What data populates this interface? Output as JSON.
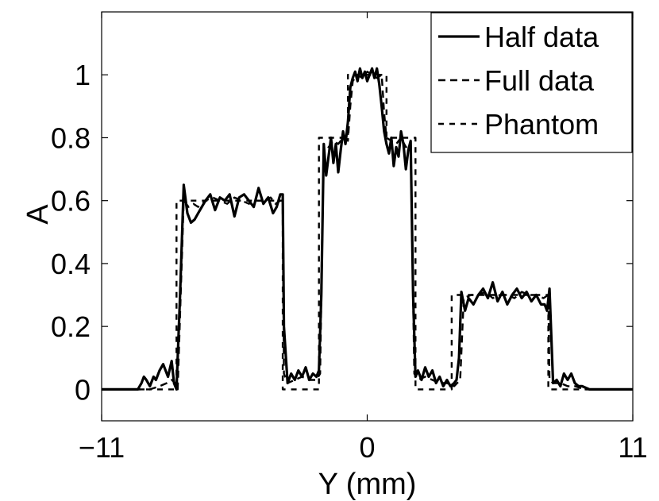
{
  "chart_data": {
    "type": "line",
    "xlabel": "Y (mm)",
    "ylabel": "A",
    "xlim": [
      -11,
      11
    ],
    "ylim": [
      -0.1,
      1.2
    ],
    "x_ticks": [
      {
        "value": -11,
        "label": "−11"
      },
      {
        "value": 0,
        "label": "0"
      },
      {
        "value": 11,
        "label": "11"
      }
    ],
    "y_ticks": [
      {
        "value": 0,
        "label": "0"
      },
      {
        "value": 0.2,
        "label": "0.2"
      },
      {
        "value": 0.4,
        "label": "0.4"
      },
      {
        "value": 0.6,
        "label": "0.6"
      },
      {
        "value": 0.8,
        "label": "0.8"
      },
      {
        "value": 1,
        "label": "1"
      }
    ],
    "grid": false,
    "legend_position": "top-right",
    "series": [
      {
        "name": "Half data",
        "style": "solid",
        "x": [
          -11,
          -9.5,
          -9.35,
          -9.25,
          -9.15,
          -9.0,
          -8.85,
          -8.75,
          -8.6,
          -8.45,
          -8.25,
          -8.1,
          -8.0,
          -7.9,
          -7.75,
          -7.6,
          -7.45,
          -7.3,
          -7.15,
          -7.0,
          -6.85,
          -6.7,
          -6.5,
          -6.3,
          -6.1,
          -5.9,
          -5.7,
          -5.5,
          -5.3,
          -5.1,
          -4.9,
          -4.7,
          -4.5,
          -4.3,
          -4.1,
          -3.9,
          -3.75,
          -3.6,
          -3.5,
          -3.45,
          -3.3,
          -3.15,
          -3.0,
          -2.85,
          -2.7,
          -2.55,
          -2.4,
          -2.25,
          -2.1,
          -2.0,
          -1.9,
          -1.8,
          -1.7,
          -1.6,
          -1.5,
          -1.4,
          -1.3,
          -1.2,
          -1.1,
          -1.0,
          -0.9,
          -0.8,
          -0.7,
          -0.6,
          -0.5,
          -0.4,
          -0.3,
          -0.2,
          -0.1,
          0.0,
          0.1,
          0.2,
          0.3,
          0.4,
          0.5,
          0.6,
          0.7,
          0.8,
          0.9,
          1.0,
          1.1,
          1.2,
          1.3,
          1.4,
          1.5,
          1.6,
          1.7,
          1.8,
          1.9,
          2.0,
          2.1,
          2.25,
          2.4,
          2.55,
          2.7,
          2.85,
          3.0,
          3.15,
          3.3,
          3.45,
          3.6,
          3.7,
          3.8,
          3.9,
          4.05,
          4.2,
          4.4,
          4.6,
          4.8,
          5.0,
          5.2,
          5.4,
          5.6,
          5.8,
          6.0,
          6.2,
          6.4,
          6.6,
          6.8,
          7.0,
          7.2,
          7.35,
          7.45,
          7.55,
          7.7,
          7.85,
          8.0,
          8.15,
          8.3,
          8.45,
          8.6,
          8.75,
          8.9,
          9.2,
          11
        ],
        "y": [
          0,
          0,
          0.02,
          0.04,
          0.03,
          0.01,
          0.04,
          0.03,
          0.06,
          0.08,
          0.04,
          0.09,
          0.02,
          0,
          0.3,
          0.65,
          0.56,
          0.53,
          0.54,
          0.56,
          0.58,
          0.6,
          0.62,
          0.57,
          0.61,
          0.6,
          0.62,
          0.55,
          0.61,
          0.62,
          0.6,
          0.58,
          0.64,
          0.59,
          0.61,
          0.56,
          0.58,
          0.62,
          0.62,
          0.2,
          0.02,
          0.05,
          0.03,
          0.06,
          0.04,
          0.07,
          0.03,
          0.05,
          0.04,
          0.06,
          0.3,
          0.78,
          0.68,
          0.74,
          0.8,
          0.72,
          0.78,
          0.69,
          0.76,
          0.82,
          0.78,
          0.85,
          0.96,
          0.99,
          1.01,
          0.98,
          1.02,
          0.99,
          1.01,
          0.98,
          1.0,
          1.02,
          0.99,
          1.02,
          0.97,
          0.9,
          0.82,
          0.78,
          0.75,
          0.8,
          0.71,
          0.77,
          0.74,
          0.82,
          0.78,
          0.7,
          0.76,
          0.79,
          0.3,
          0.04,
          0.06,
          0.03,
          0.07,
          0.04,
          0.06,
          0.02,
          0.04,
          0.01,
          0.03,
          0.01,
          0.02,
          0.03,
          0.1,
          0.31,
          0.25,
          0.29,
          0.27,
          0.3,
          0.32,
          0.29,
          0.34,
          0.28,
          0.31,
          0.27,
          0.3,
          0.32,
          0.29,
          0.31,
          0.28,
          0.3,
          0.27,
          0.27,
          0.25,
          0.32,
          0.02,
          0.03,
          0.01,
          0.05,
          0.03,
          0.05,
          0.02,
          0.01,
          0.01,
          0,
          0
        ]
      },
      {
        "name": "Full data",
        "style": "dashed",
        "x": [
          -11,
          -9.0,
          -8.6,
          -8.3,
          -8.1,
          -7.95,
          -7.85,
          -7.6,
          -7.4,
          -7.2,
          -7.0,
          -6.7,
          -6.4,
          -6.1,
          -5.8,
          -5.5,
          -5.2,
          -4.9,
          -4.6,
          -4.3,
          -4.0,
          -3.8,
          -3.6,
          -3.5,
          -3.45,
          -3.3,
          -3.0,
          -2.7,
          -2.4,
          -2.1,
          -1.95,
          -1.8,
          -1.6,
          -1.4,
          -1.2,
          -1.0,
          -0.8,
          -0.7,
          -0.6,
          -0.4,
          -0.2,
          0.0,
          0.2,
          0.4,
          0.6,
          0.7,
          0.8,
          1.0,
          1.2,
          1.4,
          1.6,
          1.8,
          1.95,
          2.1,
          2.4,
          2.7,
          3.0,
          3.3,
          3.6,
          3.85,
          4.0,
          4.3,
          4.6,
          4.9,
          5.2,
          5.5,
          5.8,
          6.1,
          6.4,
          6.7,
          7.0,
          7.3,
          7.5,
          7.55,
          7.7,
          8.0,
          8.3,
          8.6,
          9.0,
          11
        ],
        "y": [
          0,
          0,
          0.01,
          0.02,
          0.03,
          0.02,
          0,
          0.6,
          0.58,
          0.59,
          0.58,
          0.6,
          0.61,
          0.6,
          0.59,
          0.61,
          0.6,
          0.59,
          0.6,
          0.6,
          0.61,
          0.59,
          0.6,
          0.6,
          0.05,
          0.02,
          0.03,
          0.04,
          0.03,
          0.03,
          0.05,
          0.78,
          0.77,
          0.79,
          0.78,
          0.8,
          0.79,
          0.9,
          0.98,
          1.0,
          0.99,
          1.01,
          1.0,
          0.99,
          1.0,
          0.88,
          0.8,
          0.79,
          0.78,
          0.8,
          0.77,
          0.78,
          0.05,
          0.03,
          0.04,
          0.03,
          0.02,
          0.02,
          0.01,
          0.03,
          0.29,
          0.3,
          0.3,
          0.31,
          0.29,
          0.3,
          0.3,
          0.29,
          0.31,
          0.3,
          0.3,
          0.29,
          0.3,
          0.03,
          0.02,
          0.02,
          0.01,
          0.01,
          0,
          0
        ]
      },
      {
        "name": "Phantom",
        "style": "dashed",
        "x": [
          -11,
          -8.1,
          -7.9,
          -7.9,
          -3.5,
          -3.5,
          -2.0,
          -2.0,
          -0.8,
          -0.8,
          0.8,
          0.8,
          2.0,
          2.0,
          3.5,
          3.5,
          7.5,
          7.5,
          7.9,
          7.9,
          11
        ],
        "y": [
          0,
          0,
          0,
          0.6,
          0.6,
          0,
          0,
          0.8,
          0.8,
          1.0,
          1.0,
          0.8,
          0.8,
          0,
          0,
          0.3,
          0.3,
          0,
          0,
          0,
          0
        ]
      }
    ]
  }
}
